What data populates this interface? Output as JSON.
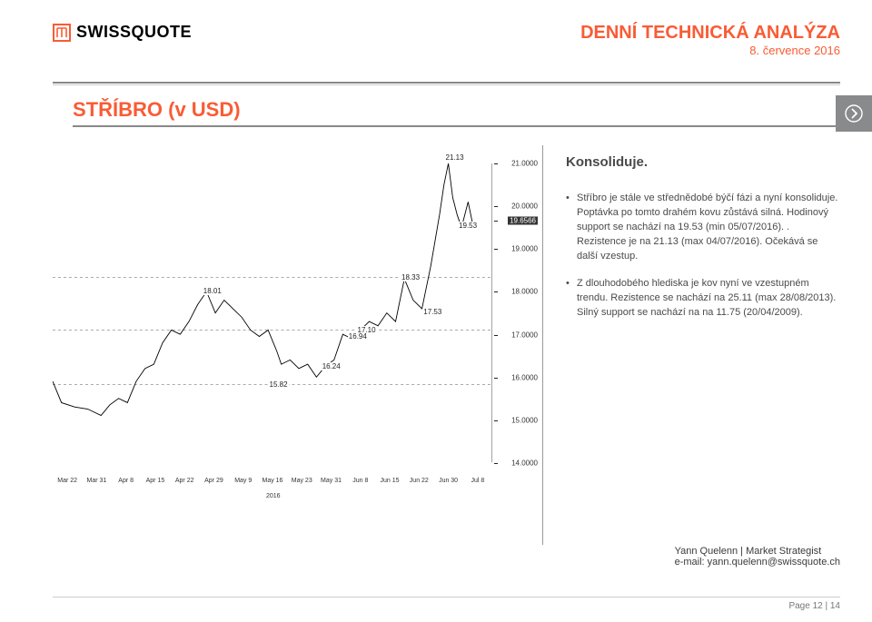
{
  "brand": {
    "logo_symbol": "m",
    "logo_text": "SWISSQUOTE"
  },
  "header": {
    "title": "DENNÍ TECHNICKÁ ANALÝZA",
    "date": "8. července 2016"
  },
  "panel": {
    "title": "STŘÍBRO (v USD)"
  },
  "chart": {
    "type": "line",
    "y": {
      "min": 14.0,
      "max": 21.0,
      "ticks": [
        "21.0000",
        "20.0000",
        "19.6566",
        "19.0000",
        "18.0000",
        "17.0000",
        "16.0000",
        "15.0000",
        "14.0000"
      ],
      "tick_vals": [
        21.0,
        20.0,
        19.6566,
        19.0,
        18.0,
        17.0,
        16.0,
        15.0,
        14.0
      ],
      "tick_box": [
        false,
        false,
        true,
        false,
        false,
        false,
        false,
        false,
        false
      ]
    },
    "x": {
      "labels": [
        "Mar 22",
        "Mar 31",
        "Apr 8",
        "Apr 15",
        "Apr 22",
        "Apr 29",
        "May 9",
        "May 16",
        "May 23",
        "May 31",
        "Jun 8",
        "Jun 15",
        "Jun 22",
        "Jun 30",
        "Jul 8"
      ],
      "year": "2016"
    },
    "annotations": [
      {
        "label": "21.13",
        "val": 21.13,
        "x": 0.9
      },
      {
        "label": "19.53",
        "val": 19.53,
        "x": 0.93
      },
      {
        "label": "18.33",
        "val": 18.33,
        "x": 0.8
      },
      {
        "label": "18.01",
        "val": 18.01,
        "x": 0.35
      },
      {
        "label": "17.53",
        "val": 17.53,
        "x": 0.85
      },
      {
        "label": "17.10",
        "val": 17.1,
        "x": 0.7
      },
      {
        "label": "16.94",
        "val": 16.94,
        "x": 0.68
      },
      {
        "label": "16.24",
        "val": 16.24,
        "x": 0.62
      },
      {
        "label": "15.82",
        "val": 15.82,
        "x": 0.5
      }
    ],
    "series": [
      {
        "x": 0.0,
        "y": 15.9
      },
      {
        "x": 0.02,
        "y": 15.4
      },
      {
        "x": 0.05,
        "y": 15.3
      },
      {
        "x": 0.08,
        "y": 15.25
      },
      {
        "x": 0.11,
        "y": 15.1
      },
      {
        "x": 0.13,
        "y": 15.35
      },
      {
        "x": 0.15,
        "y": 15.5
      },
      {
        "x": 0.17,
        "y": 15.4
      },
      {
        "x": 0.19,
        "y": 15.9
      },
      {
        "x": 0.21,
        "y": 16.2
      },
      {
        "x": 0.23,
        "y": 16.3
      },
      {
        "x": 0.25,
        "y": 16.8
      },
      {
        "x": 0.27,
        "y": 17.1
      },
      {
        "x": 0.29,
        "y": 17.0
      },
      {
        "x": 0.31,
        "y": 17.3
      },
      {
        "x": 0.33,
        "y": 17.7
      },
      {
        "x": 0.35,
        "y": 18.0
      },
      {
        "x": 0.37,
        "y": 17.5
      },
      {
        "x": 0.39,
        "y": 17.8
      },
      {
        "x": 0.41,
        "y": 17.6
      },
      {
        "x": 0.43,
        "y": 17.4
      },
      {
        "x": 0.45,
        "y": 17.1
      },
      {
        "x": 0.47,
        "y": 16.95
      },
      {
        "x": 0.49,
        "y": 17.1
      },
      {
        "x": 0.51,
        "y": 16.6
      },
      {
        "x": 0.52,
        "y": 16.3
      },
      {
        "x": 0.54,
        "y": 16.4
      },
      {
        "x": 0.56,
        "y": 16.2
      },
      {
        "x": 0.58,
        "y": 16.3
      },
      {
        "x": 0.6,
        "y": 16.0
      },
      {
        "x": 0.62,
        "y": 16.25
      },
      {
        "x": 0.64,
        "y": 16.4
      },
      {
        "x": 0.66,
        "y": 17.0
      },
      {
        "x": 0.68,
        "y": 16.9
      },
      {
        "x": 0.7,
        "y": 17.1
      },
      {
        "x": 0.72,
        "y": 17.3
      },
      {
        "x": 0.74,
        "y": 17.2
      },
      {
        "x": 0.76,
        "y": 17.5
      },
      {
        "x": 0.78,
        "y": 17.3
      },
      {
        "x": 0.8,
        "y": 18.3
      },
      {
        "x": 0.82,
        "y": 17.8
      },
      {
        "x": 0.84,
        "y": 17.6
      },
      {
        "x": 0.86,
        "y": 18.6
      },
      {
        "x": 0.88,
        "y": 19.8
      },
      {
        "x": 0.89,
        "y": 20.5
      },
      {
        "x": 0.9,
        "y": 21.0
      },
      {
        "x": 0.91,
        "y": 20.2
      },
      {
        "x": 0.92,
        "y": 19.8
      },
      {
        "x": 0.93,
        "y": 19.5
      },
      {
        "x": 0.945,
        "y": 20.1
      },
      {
        "x": 0.955,
        "y": 19.6
      }
    ],
    "hlines": [
      21.13,
      18.33,
      17.1,
      15.82
    ],
    "colors": {
      "line": "#000000",
      "yaxis": "#222222",
      "hline": "#555555",
      "yaxis_box_bg": "#333333"
    }
  },
  "analysis": {
    "summary": "Konsoliduje.",
    "bullets": [
      "Stříbro je stále ve střednědobé býčí fázi a nyní konsoliduje. Poptávka po tomto drahém kovu zůstává silná. Hodinový support se nachází na 19.53 (min 05/07/2016). . Rezistence je na  21.13 (max 04/07/2016). Očekává se další vzestup.",
      "Z dlouhodobého hlediska je kov nyní ve vzestupném trendu. Rezistence se nachází na 25.11 (max 28/08/2013). Silný support se nachází na na 11.75 (20/04/2009)."
    ]
  },
  "author": {
    "name": "Yann Quelenn | Market Strategist",
    "email": "e-mail: yann.quelenn@swissquote.ch"
  },
  "footer": {
    "page": "Page 12 | 14"
  }
}
